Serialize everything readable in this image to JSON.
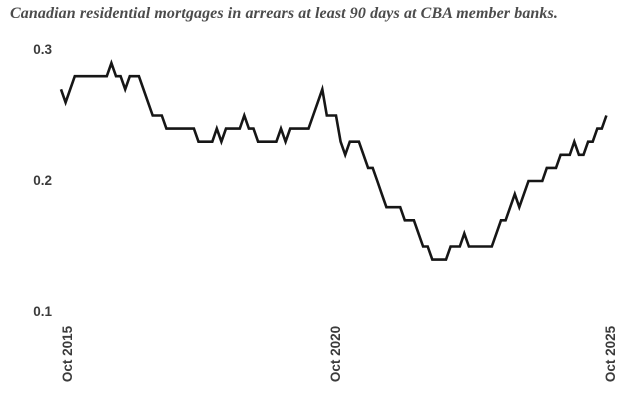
{
  "title": "Canadian residential mortgages in arrears at least 90 days at CBA member banks.",
  "colors": {
    "background": "#ffffff",
    "line": "#161616",
    "title_text": "#4c4c4c",
    "tick_text": "#3b3b3b"
  },
  "chart_data": {
    "type": "line",
    "title": "Canadian residential mortgages in arrears at least 90 days at CBA member banks.",
    "frequency": "monthly",
    "x_start": "Oct 2015",
    "x_end": "Oct 2025",
    "x_tick_labels": [
      "Oct 2015",
      "Oct 2020",
      "Oct 2025"
    ],
    "y_tick_labels": [
      "0.3",
      "0.2",
      "0.1"
    ],
    "y_tick_values": [
      0.3,
      0.2,
      0.1
    ],
    "ylim": [
      0.08,
      0.31
    ],
    "grid": false,
    "legend": false,
    "values": [
      0.27,
      0.26,
      0.27,
      0.28,
      0.28,
      0.28,
      0.28,
      0.28,
      0.28,
      0.28,
      0.28,
      0.29,
      0.28,
      0.28,
      0.27,
      0.28,
      0.28,
      0.28,
      0.27,
      0.26,
      0.25,
      0.25,
      0.25,
      0.24,
      0.24,
      0.24,
      0.24,
      0.24,
      0.24,
      0.24,
      0.23,
      0.23,
      0.23,
      0.23,
      0.24,
      0.23,
      0.24,
      0.24,
      0.24,
      0.24,
      0.25,
      0.24,
      0.24,
      0.23,
      0.23,
      0.23,
      0.23,
      0.23,
      0.24,
      0.23,
      0.24,
      0.24,
      0.24,
      0.24,
      0.24,
      0.25,
      0.26,
      0.27,
      0.25,
      0.25,
      0.25,
      0.23,
      0.22,
      0.23,
      0.23,
      0.23,
      0.22,
      0.21,
      0.21,
      0.2,
      0.19,
      0.18,
      0.18,
      0.18,
      0.18,
      0.17,
      0.17,
      0.17,
      0.16,
      0.15,
      0.15,
      0.14,
      0.14,
      0.14,
      0.14,
      0.15,
      0.15,
      0.15,
      0.16,
      0.15,
      0.15,
      0.15,
      0.15,
      0.15,
      0.15,
      0.16,
      0.17,
      0.17,
      0.18,
      0.19,
      0.18,
      0.19,
      0.2,
      0.2,
      0.2,
      0.2,
      0.21,
      0.21,
      0.21,
      0.22,
      0.22,
      0.22,
      0.23,
      0.22,
      0.22,
      0.23,
      0.23,
      0.24,
      0.24,
      0.25
    ]
  }
}
